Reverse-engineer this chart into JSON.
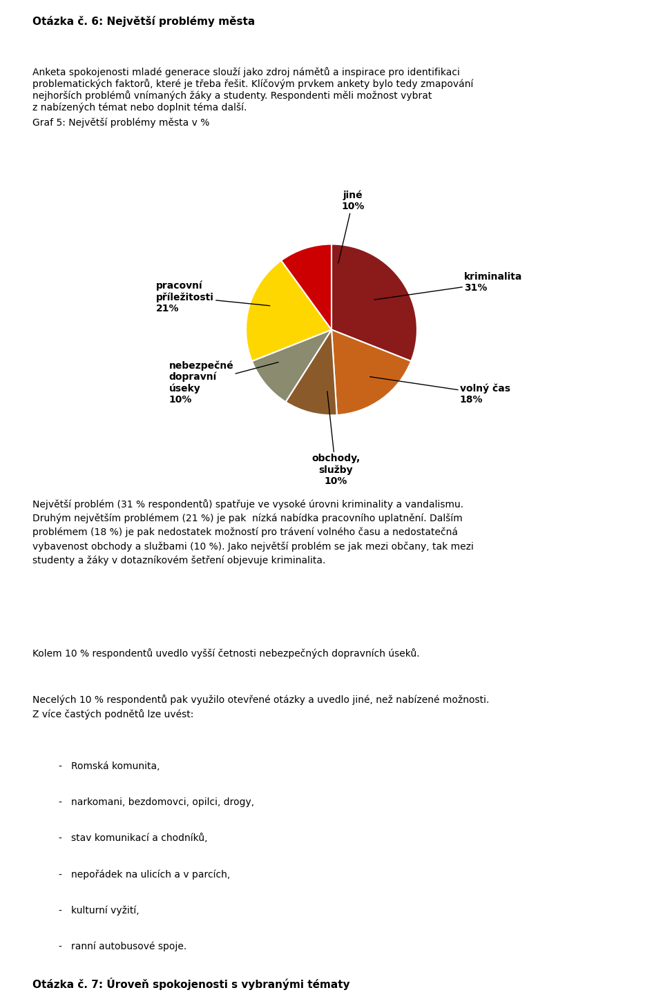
{
  "title": "Graf 5: Největší problémy města v %",
  "slices": [
    {
      "label": "kriminalita\n31%",
      "value": 31,
      "color": "#8B1A1A"
    },
    {
      "label": "volný čas\n18%",
      "value": 18,
      "color": "#C8641A"
    },
    {
      "label": "obchody,\nslužby\n10%",
      "value": 10,
      "color": "#8B5A2B"
    },
    {
      "label": "nebezpečné\ndopravní\núseky\n10%",
      "value": 10,
      "color": "#8B8B70"
    },
    {
      "label": "pracovní\npříležitosti\n21%",
      "value": 21,
      "color": "#FFD700"
    },
    {
      "label": "jiné\n10%",
      "value": 10,
      "color": "#CC0000"
    }
  ],
  "startangle": 90,
  "background_color": "#FFFFFF",
  "label_fontsize": 10,
  "title_fontsize": 11,
  "text_above": [
    {
      "text": "Otázka č. 6: Největší problémy města",
      "bold": true,
      "underline": true,
      "fontsize": 11
    },
    {
      "text": "\nAnketa spokojenosti mladé generace slouží jako zdroj námětů a inspirace pro identifikaci problematických faktorů, které je třeba řešit. Klíčovým prvkem ankety bylo tedy zmapování nejhorších problémů vnímaných žáky a studenty. Respondenti měli možnost vybrat z nabízených témat nebo doplnit téma další.",
      "bold": false,
      "underline": false,
      "fontsize": 10
    },
    {
      "text": "\nGraf 5: Největší problémy města v %",
      "bold": false,
      "underline": false,
      "fontsize": 10
    }
  ],
  "text_below": [
    "Největší problém (31 % respondentů) spatřuje ve vysoké úrovni kriminality a vandalismu. Druhým největším problémem (21 %) je pak nízká nabídka pracovního uplatnění. Dalším problémem (18 %) je pak nedostatek možností pro trávení volného času a nedostatečná vybavenost obchody a službami (10 %). Jako největší problém se jak mezi občany, tak mezi studenty a žáky v dotazníkovém šetření objevuje kriminalita.",
    "\nKolem 10 % respondentů uvedlo vyšší četnosti nebezpečných dopravních úseků.",
    "\nNecelých 10 % respondentů pak využilo otevřené otázky a uvedlo jiné, než nabízené možnosti. Z více častých podnětů lze uvést:",
    "  -   Romská komunita,",
    "  -   narkomani, bezdomovci, opilci, drogy,",
    "  -   stav komunikací a chodníků,",
    "  -   nepořádek na ulicích a v parcích,",
    "  -   kulturní vyžití,",
    "  -   ranní autobusové spoje."
  ]
}
